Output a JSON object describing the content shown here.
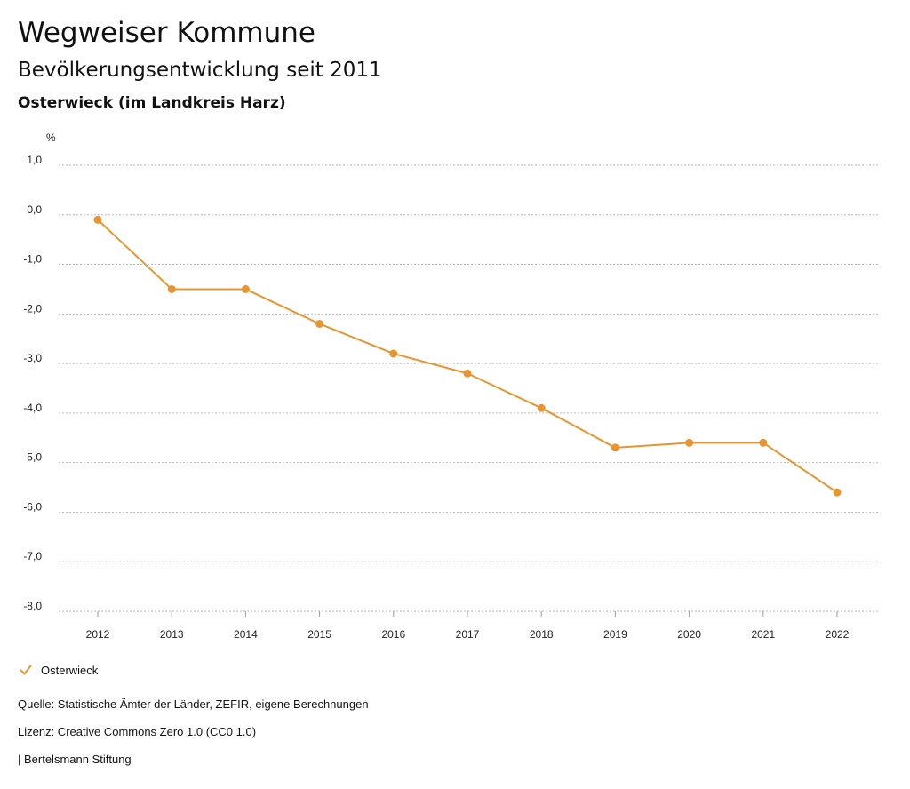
{
  "header": {
    "title": "Wegweiser Kommune",
    "subtitle": "Bevölkerungsentwicklung seit 2011",
    "region": "Osterwieck (im Landkreis Harz)"
  },
  "colors": {
    "series": "#E8952F",
    "grid": "#bbbbbb",
    "text": "#222222"
  },
  "chart_data": {
    "type": "line",
    "title": "Bevölkerungsentwicklung seit 2011",
    "subtitle": "Osterwieck (im Landkreis Harz)",
    "ylabel": "%",
    "xlabel": "",
    "ylim": [
      -8,
      1
    ],
    "yticks": [
      1,
      0,
      -1,
      -2,
      -3,
      -4,
      -5,
      -6,
      -7,
      -8
    ],
    "ytick_labels": [
      "1,0",
      "0,0",
      "-1,0",
      "-2,0",
      "-3,0",
      "-4,0",
      "-5,0",
      "-6,0",
      "-7,0",
      "-8,0"
    ],
    "categories": [
      "2012",
      "2013",
      "2014",
      "2015",
      "2016",
      "2017",
      "2018",
      "2019",
      "2020",
      "2021",
      "2022"
    ],
    "series": [
      {
        "name": "Osterwieck",
        "values": [
          -0.1,
          -1.5,
          -1.5,
          -2.2,
          -2.8,
          -3.2,
          -3.9,
          -4.7,
          -4.6,
          -4.6,
          -5.6
        ]
      }
    ],
    "grid": true,
    "legend": "bottom-left"
  },
  "legend": {
    "label": "Osterwieck",
    "icon": "check-icon"
  },
  "footer": {
    "source": "Quelle: Statistische Ämter der Länder, ZEFIR, eigene Berechnungen",
    "license": "Lizenz: Creative Commons Zero 1.0 (CC0 1.0)",
    "publisher": "| Bertelsmann Stiftung"
  }
}
